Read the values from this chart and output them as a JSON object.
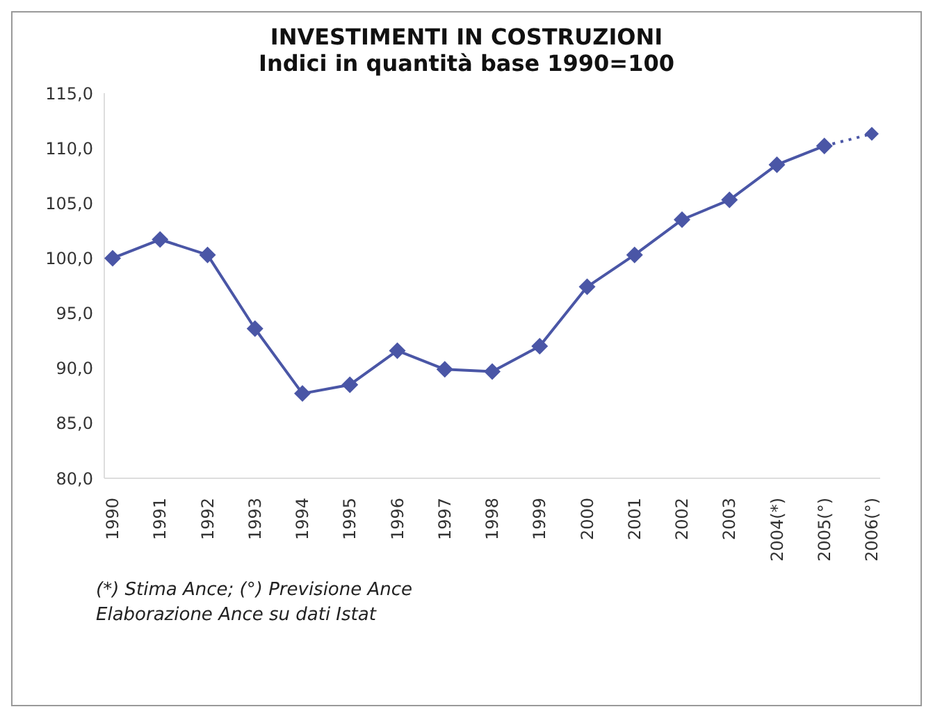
{
  "chart_data": {
    "type": "line",
    "title": "INVESTIMENTI IN COSTRUZIONI",
    "subtitle": "Indici in quantità base 1990=100",
    "categories": [
      "1990",
      "1991",
      "1992",
      "1993",
      "1994",
      "1995",
      "1996",
      "1997",
      "1998",
      "1999",
      "2000",
      "2001",
      "2002",
      "2003",
      "2004(*)",
      "2005(°)",
      "2006(°)"
    ],
    "series": [
      {
        "color": "#4a56a6",
        "line_style": "solid",
        "values": [
          100,
          101.7,
          100.3,
          93.6,
          87.7,
          88.5,
          91.6,
          89.9,
          89.7,
          92.0,
          97.4,
          100.3,
          103.5,
          105.3,
          108.5,
          110.2,
          null
        ]
      },
      {
        "color": "#4a56a6",
        "line_style": "dotted",
        "values": [
          null,
          null,
          null,
          null,
          null,
          null,
          null,
          null,
          null,
          null,
          null,
          null,
          null,
          null,
          null,
          110.2,
          111.3
        ]
      }
    ],
    "ylim": [
      80,
      115
    ],
    "yticks": [
      {
        "value": 80,
        "label": "80,0"
      },
      {
        "value": 85,
        "label": "85,0"
      },
      {
        "value": 90,
        "label": "90,0"
      },
      {
        "value": 95,
        "label": "95,0"
      },
      {
        "value": 100,
        "label": "100,0"
      },
      {
        "value": 105,
        "label": "105,0"
      },
      {
        "value": 110,
        "label": "110,0"
      },
      {
        "value": 115,
        "label": "115,0"
      }
    ],
    "marker": "diamond",
    "grid": false,
    "legend": false,
    "annotations": [
      "(*) Stima Ance; (°) Previsione Ance",
      "Elaborazione Ance su dati Istat"
    ]
  }
}
